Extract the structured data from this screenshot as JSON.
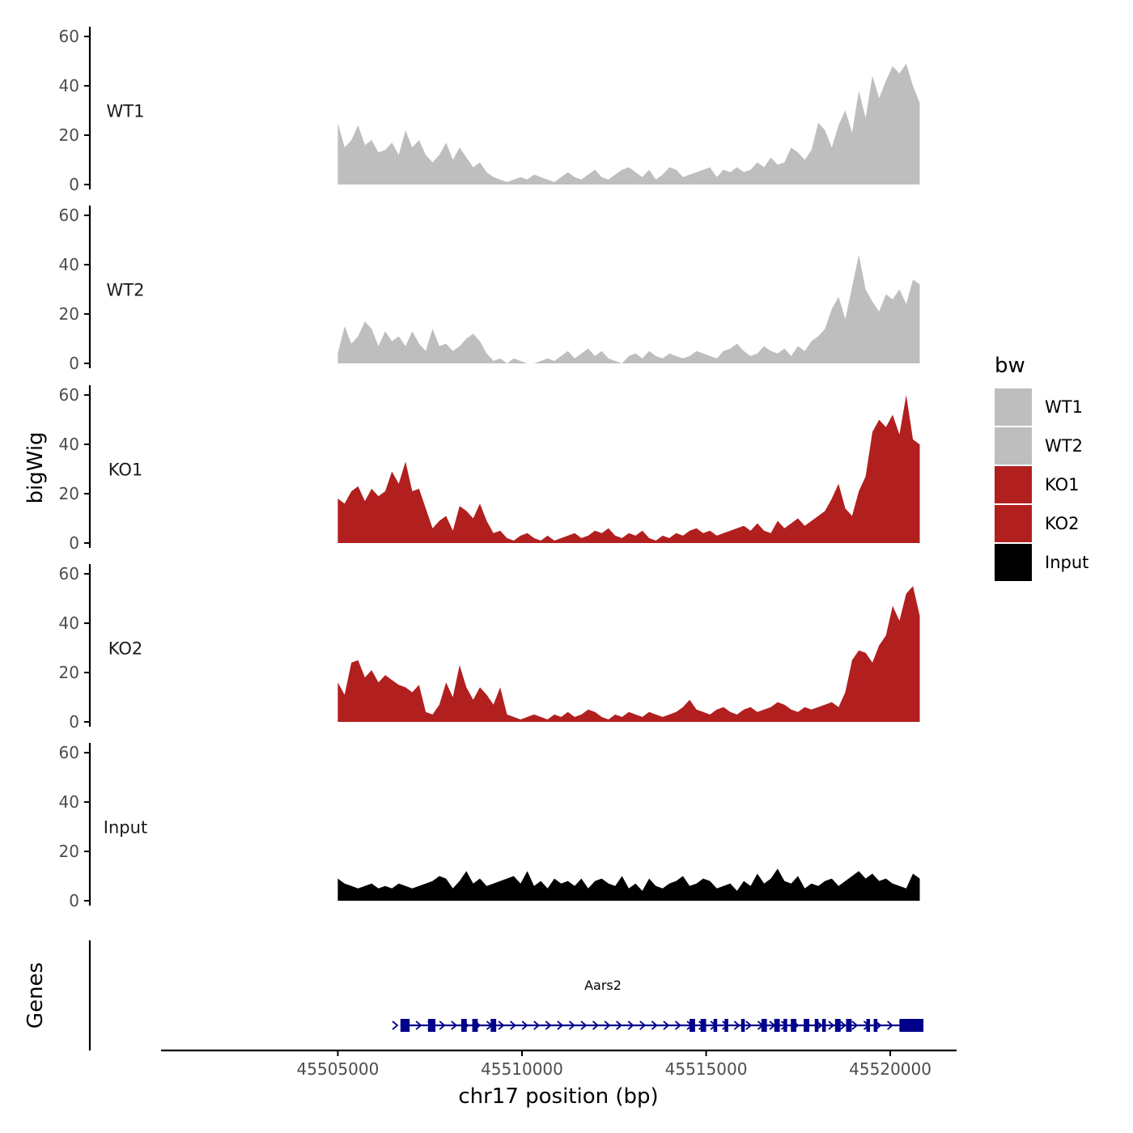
{
  "chart_data": {
    "type": "area",
    "xlabel": "chr17 position (bp)",
    "ylabel": "bigWig",
    "genes_label": "Genes",
    "xlim": [
      45500200,
      45521800
    ],
    "x_ticks": [
      45505000,
      45510000,
      45515000,
      45520000
    ],
    "x_tick_labels": [
      "45505000",
      "45510000",
      "45515000",
      "45520000"
    ],
    "ylim": [
      0,
      62
    ],
    "y_ticks": [
      0,
      20,
      40,
      60
    ],
    "y_tick_labels": [
      "0",
      "20",
      "40",
      "60"
    ],
    "legend": {
      "title": "bw",
      "entries": [
        {
          "label": "WT1",
          "color": "#bebebe"
        },
        {
          "label": "WT2",
          "color": "#bebebe"
        },
        {
          "label": "KO1",
          "color": "#b21f1f"
        },
        {
          "label": "KO2",
          "color": "#b21f1f"
        },
        {
          "label": "Input",
          "color": "#000000"
        }
      ]
    },
    "series": [
      {
        "name": "WT1",
        "label": "WT1",
        "color": "#bebebe",
        "x_start": 45505000,
        "x_end": 45520800,
        "values": [
          25,
          15,
          18,
          24,
          16,
          18,
          13,
          14,
          17,
          12,
          22,
          15,
          18,
          12,
          9,
          12,
          17,
          10,
          15,
          11,
          7,
          9,
          5,
          3,
          2,
          1,
          2,
          3,
          2,
          4,
          3,
          2,
          1,
          3,
          5,
          3,
          2,
          4,
          6,
          3,
          2,
          4,
          6,
          7,
          5,
          3,
          6,
          2,
          4,
          7,
          6,
          3,
          4,
          5,
          6,
          7,
          3,
          6,
          5,
          7,
          5,
          6,
          9,
          7,
          11,
          8,
          9,
          15,
          13,
          10,
          14,
          25,
          22,
          15,
          24,
          30,
          21,
          38,
          27,
          44,
          35,
          42,
          48,
          45,
          49,
          40,
          33
        ]
      },
      {
        "name": "WT2",
        "label": "WT2",
        "color": "#bebebe",
        "x_start": 45505000,
        "x_end": 45520800,
        "values": [
          4,
          15,
          8,
          11,
          17,
          14,
          7,
          13,
          9,
          11,
          7,
          13,
          8,
          5,
          14,
          7,
          8,
          5,
          7,
          10,
          12,
          9,
          4,
          1,
          2,
          0,
          2,
          1,
          0,
          0,
          1,
          2,
          1,
          3,
          5,
          2,
          4,
          6,
          3,
          5,
          2,
          1,
          0,
          3,
          4,
          2,
          5,
          3,
          2,
          4,
          3,
          2,
          3,
          5,
          4,
          3,
          2,
          5,
          6,
          8,
          5,
          3,
          4,
          7,
          5,
          4,
          6,
          3,
          7,
          5,
          9,
          11,
          14,
          22,
          27,
          18,
          31,
          44,
          30,
          25,
          21,
          28,
          26,
          30,
          24,
          34,
          32
        ]
      },
      {
        "name": "KO1",
        "label": "KO1",
        "color": "#b21f1f",
        "x_start": 45505000,
        "x_end": 45520800,
        "values": [
          18,
          16,
          21,
          23,
          17,
          22,
          19,
          21,
          29,
          24,
          33,
          21,
          22,
          14,
          6,
          9,
          11,
          5,
          15,
          13,
          10,
          16,
          9,
          4,
          5,
          2,
          1,
          3,
          4,
          2,
          1,
          3,
          1,
          2,
          3,
          4,
          2,
          3,
          5,
          4,
          6,
          3,
          2,
          4,
          3,
          5,
          2,
          1,
          3,
          2,
          4,
          3,
          5,
          6,
          4,
          5,
          3,
          4,
          5,
          6,
          7,
          5,
          8,
          5,
          4,
          9,
          6,
          8,
          10,
          7,
          9,
          11,
          13,
          18,
          24,
          14,
          11,
          21,
          27,
          45,
          50,
          47,
          52,
          44,
          60,
          42,
          40
        ]
      },
      {
        "name": "KO2",
        "label": "KO2",
        "color": "#b21f1f",
        "x_start": 45505000,
        "x_end": 45520800,
        "values": [
          16,
          11,
          24,
          25,
          18,
          21,
          16,
          19,
          17,
          15,
          14,
          12,
          15,
          4,
          3,
          7,
          16,
          10,
          23,
          14,
          9,
          14,
          11,
          7,
          14,
          3,
          2,
          1,
          2,
          3,
          2,
          1,
          3,
          2,
          4,
          2,
          3,
          5,
          4,
          2,
          1,
          3,
          2,
          4,
          3,
          2,
          4,
          3,
          2,
          3,
          4,
          6,
          9,
          5,
          4,
          3,
          5,
          6,
          4,
          3,
          5,
          6,
          4,
          5,
          6,
          8,
          7,
          5,
          4,
          6,
          5,
          6,
          7,
          8,
          6,
          12,
          25,
          29,
          28,
          24,
          31,
          35,
          47,
          41,
          52,
          55,
          43
        ]
      },
      {
        "name": "Input",
        "label": "Input",
        "color": "#000000",
        "x_start": 45505000,
        "x_end": 45520800,
        "values": [
          9,
          7,
          6,
          5,
          6,
          7,
          5,
          6,
          5,
          7,
          6,
          5,
          6,
          7,
          8,
          10,
          9,
          5,
          8,
          12,
          7,
          9,
          6,
          7,
          8,
          9,
          10,
          7,
          12,
          6,
          8,
          5,
          9,
          7,
          8,
          6,
          9,
          5,
          8,
          9,
          7,
          6,
          10,
          5,
          7,
          4,
          9,
          6,
          5,
          7,
          8,
          10,
          6,
          7,
          9,
          8,
          5,
          6,
          7,
          4,
          8,
          6,
          11,
          7,
          9,
          13,
          8,
          7,
          10,
          5,
          7,
          6,
          8,
          9,
          6,
          8,
          10,
          12,
          9,
          11,
          8,
          9,
          7,
          6,
          5,
          11,
          9
        ]
      }
    ],
    "gene": {
      "name": "Aars2",
      "color": "#00008b",
      "start": 45506700,
      "end": 45520900,
      "strand": "+",
      "exons": [
        [
          45506700,
          45506950
        ],
        [
          45507450,
          45507650
        ],
        [
          45508350,
          45508500
        ],
        [
          45508650,
          45508800
        ],
        [
          45509150,
          45509300
        ],
        [
          45514550,
          45514700
        ],
        [
          45514850,
          45515000
        ],
        [
          45515200,
          45515300
        ],
        [
          45515500,
          45515600
        ],
        [
          45515950,
          45516050
        ],
        [
          45516500,
          45516650
        ],
        [
          45516850,
          45517000
        ],
        [
          45517100,
          45517200
        ],
        [
          45517300,
          45517450
        ],
        [
          45517650,
          45517800
        ],
        [
          45517950,
          45518050
        ],
        [
          45518150,
          45518250
        ],
        [
          45518500,
          45518650
        ],
        [
          45518800,
          45518950
        ],
        [
          45519350,
          45519450
        ],
        [
          45519550,
          45519650
        ],
        [
          45520250,
          45520900
        ]
      ]
    }
  }
}
